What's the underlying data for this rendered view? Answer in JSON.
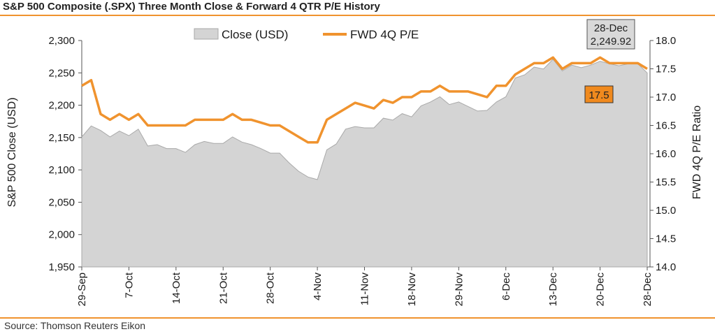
{
  "title": "S&P 500 Composite (.SPX) Three Month Close & Forward 4 QTR P/E History",
  "source": "Source: Thomson Reuters Eikon",
  "colors": {
    "accent": "#f0932e",
    "area_fill": "#d4d4d4",
    "area_stroke": "#a9a9a9",
    "label_box": "#d9d9d9",
    "pe_box": "#f08a1e"
  },
  "chart_data": {
    "type": "area",
    "x_tick_labels": [
      "29-Sep",
      "7-Oct",
      "14-Oct",
      "21-Oct",
      "28-Oct",
      "4-Nov",
      "11-Nov",
      "18-Nov",
      "29-Nov",
      "6-Dec",
      "13-Dec",
      "20-Dec",
      "28-Dec"
    ],
    "y_left": {
      "label": "S&P 500 Close (USD)",
      "range": [
        1950,
        2300
      ],
      "ticks": [
        "1,950",
        "2,000",
        "2,050",
        "2,100",
        "2,150",
        "2,200",
        "2,250",
        "2,300"
      ]
    },
    "y_right": {
      "label": "FWD 4Q P/E Ratio",
      "range": [
        14.0,
        18.0
      ],
      "ticks": [
        "14.0",
        "14.5",
        "15.0",
        "15.5",
        "16.0",
        "16.5",
        "17.0",
        "17.5",
        "18.0"
      ]
    },
    "legend": {
      "placement": "top-center"
    },
    "series": [
      {
        "name": "Close (USD)",
        "axis": "left",
        "type": "area",
        "values": [
          2151,
          2168,
          2161,
          2151,
          2160,
          2153,
          2163,
          2137,
          2139,
          2133,
          2133,
          2127,
          2139,
          2144,
          2141,
          2141,
          2151,
          2143,
          2139,
          2133,
          2126,
          2126,
          2111,
          2098,
          2089,
          2085,
          2131,
          2140,
          2163,
          2167,
          2165,
          2165,
          2180,
          2177,
          2187,
          2182,
          2199,
          2205,
          2213,
          2201,
          2205,
          2198,
          2191,
          2192,
          2205,
          2213,
          2242,
          2247,
          2259,
          2256,
          2271,
          2253,
          2262,
          2258,
          2262,
          2268,
          2264,
          2261,
          2264,
          2264,
          2250
        ]
      },
      {
        "name": "FWD 4Q P/E",
        "axis": "right",
        "type": "line",
        "values": [
          17.2,
          17.3,
          16.7,
          16.6,
          16.7,
          16.6,
          16.7,
          16.5,
          16.5,
          16.5,
          16.5,
          16.5,
          16.6,
          16.6,
          16.6,
          16.6,
          16.7,
          16.6,
          16.6,
          16.55,
          16.5,
          16.5,
          16.4,
          16.3,
          16.2,
          16.2,
          16.6,
          16.7,
          16.8,
          16.9,
          16.85,
          16.8,
          16.95,
          16.9,
          17.0,
          17.0,
          17.1,
          17.1,
          17.2,
          17.1,
          17.1,
          17.1,
          17.05,
          17.0,
          17.2,
          17.2,
          17.4,
          17.5,
          17.6,
          17.6,
          17.7,
          17.5,
          17.6,
          17.6,
          17.6,
          17.7,
          17.6,
          17.6,
          17.6,
          17.6,
          17.5
        ]
      }
    ],
    "annotations": {
      "close_label": {
        "date": "28-Dec",
        "value": "2,249.92"
      },
      "pe_label": "17.5"
    }
  }
}
